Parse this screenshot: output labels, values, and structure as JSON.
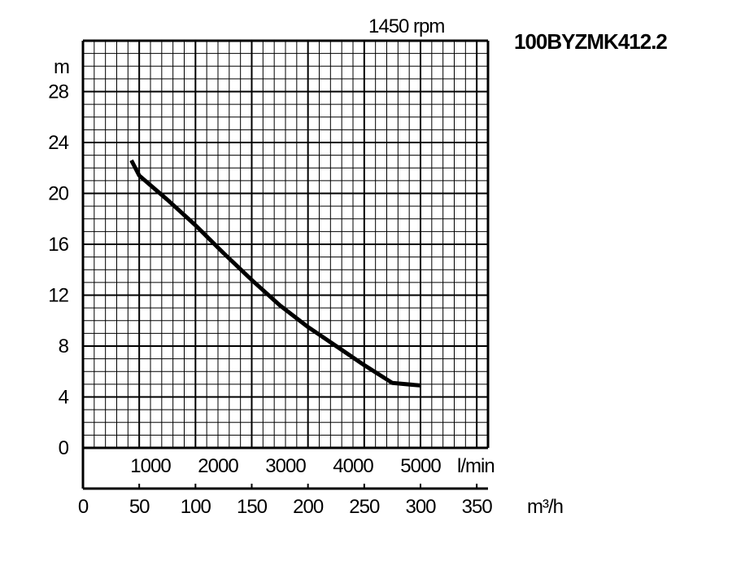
{
  "chart_data": {
    "type": "line",
    "speed_label": "1450 rpm",
    "model_label": "100BYZMK412.2",
    "y_unit": "m",
    "y_ticks": [
      0,
      4,
      8,
      12,
      16,
      20,
      24,
      28
    ],
    "ylim": [
      0,
      32
    ],
    "x_unit": "m³/h",
    "x_ticks": [
      0,
      50,
      100,
      150,
      200,
      250,
      300,
      350
    ],
    "xlim": [
      0,
      360
    ],
    "x2_unit": "l/min",
    "x2_ticks": [
      1000,
      2000,
      3000,
      4000,
      5000
    ],
    "grid": true,
    "series": [
      {
        "x": [
          43,
          50,
          75,
          100,
          125,
          150,
          175,
          200,
          225,
          250,
          275,
          300
        ],
        "y": [
          22.6,
          21.4,
          19.5,
          17.5,
          15.3,
          13.2,
          11.2,
          9.5,
          8.0,
          6.5,
          5.1,
          4.9
        ]
      }
    ]
  }
}
